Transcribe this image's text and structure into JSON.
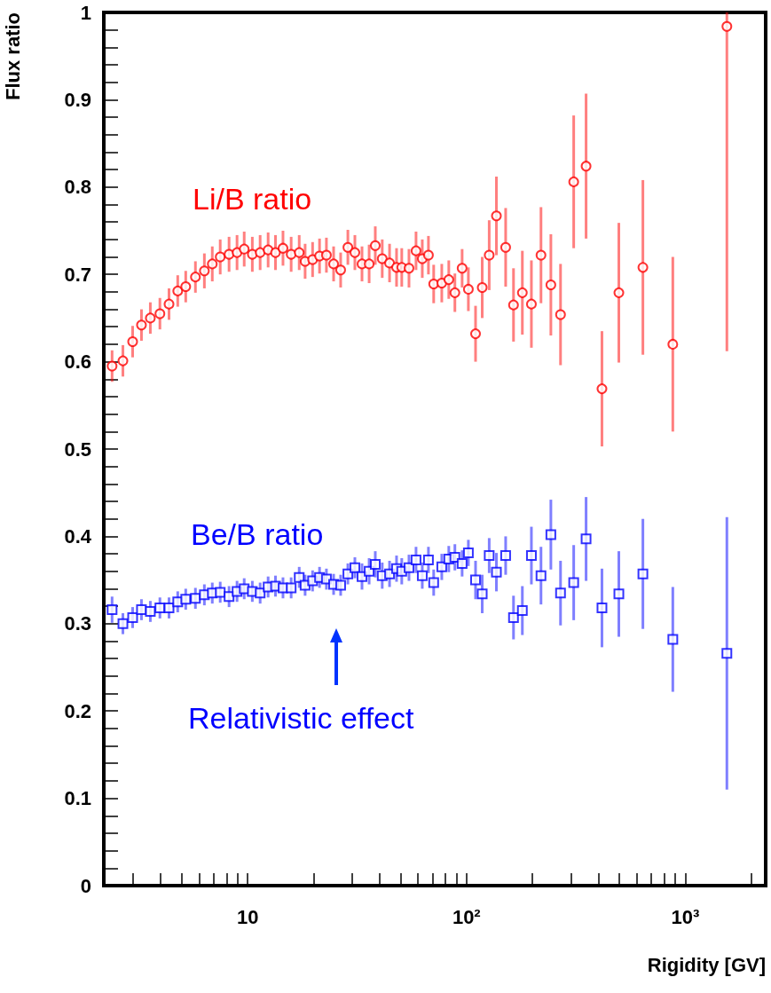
{
  "chart_data": {
    "type": "scatter",
    "xlabel": "Rigidity [GV]",
    "ylabel": "Flux ratio",
    "log": "x",
    "grid": false,
    "xlim": [
      2.2,
      2330
    ],
    "ylim": [
      0,
      1
    ],
    "xticks": [
      {
        "value": 3,
        "label": null
      },
      {
        "value": 4,
        "label": null
      },
      {
        "value": 5,
        "label": null
      },
      {
        "value": 6,
        "label": null
      },
      {
        "value": 7,
        "label": null
      },
      {
        "value": 8,
        "label": null
      },
      {
        "value": 9,
        "label": null
      },
      {
        "value": 10,
        "label": "10"
      },
      {
        "value": 20,
        "label": null
      },
      {
        "value": 30,
        "label": null
      },
      {
        "value": 40,
        "label": null
      },
      {
        "value": 50,
        "label": null
      },
      {
        "value": 60,
        "label": null
      },
      {
        "value": 70,
        "label": null
      },
      {
        "value": 80,
        "label": null
      },
      {
        "value": 90,
        "label": null
      },
      {
        "value": 100,
        "label": "10²"
      },
      {
        "value": 200,
        "label": null
      },
      {
        "value": 300,
        "label": null
      },
      {
        "value": 400,
        "label": null
      },
      {
        "value": 500,
        "label": null
      },
      {
        "value": 600,
        "label": null
      },
      {
        "value": 700,
        "label": null
      },
      {
        "value": 800,
        "label": null
      },
      {
        "value": 900,
        "label": null
      },
      {
        "value": 1000,
        "label": "10³"
      },
      {
        "value": 2000,
        "label": null
      }
    ],
    "yticks": [
      0,
      {
        "value": 0.02,
        "label": null
      },
      {
        "value": 0.04,
        "label": null
      },
      {
        "value": 0.06,
        "label": null
      },
      {
        "value": 0.08,
        "label": null
      },
      0.1,
      {
        "value": 0.12,
        "label": null
      },
      {
        "value": 0.14,
        "label": null
      },
      {
        "value": 0.16,
        "label": null
      },
      {
        "value": 0.18,
        "label": null
      },
      0.2,
      {
        "value": 0.22,
        "label": null
      },
      {
        "value": 0.24,
        "label": null
      },
      {
        "value": 0.26,
        "label": null
      },
      {
        "value": 0.28,
        "label": null
      },
      0.3,
      {
        "value": 0.32,
        "label": null
      },
      {
        "value": 0.34,
        "label": null
      },
      {
        "value": 0.36,
        "label": null
      },
      {
        "value": 0.38,
        "label": null
      },
      0.4,
      {
        "value": 0.42,
        "label": null
      },
      {
        "value": 0.44,
        "label": null
      },
      {
        "value": 0.46,
        "label": null
      },
      {
        "value": 0.48,
        "label": null
      },
      0.5,
      {
        "value": 0.52,
        "label": null
      },
      {
        "value": 0.54,
        "label": null
      },
      {
        "value": 0.56,
        "label": null
      },
      {
        "value": 0.58,
        "label": null
      },
      0.6,
      {
        "value": 0.62,
        "label": null
      },
      {
        "value": 0.64,
        "label": null
      },
      {
        "value": 0.66,
        "label": null
      },
      {
        "value": 0.68,
        "label": null
      },
      0.7,
      {
        "value": 0.72,
        "label": null
      },
      {
        "value": 0.74,
        "label": null
      },
      {
        "value": 0.76,
        "label": null
      },
      {
        "value": 0.78,
        "label": null
      },
      0.8,
      {
        "value": 0.82,
        "label": null
      },
      {
        "value": 0.84,
        "label": null
      },
      {
        "value": 0.86,
        "label": null
      },
      {
        "value": 0.88,
        "label": null
      },
      0.9,
      {
        "value": 0.92,
        "label": null
      },
      {
        "value": 0.94,
        "label": null
      },
      {
        "value": 0.96,
        "label": null
      },
      {
        "value": 0.98,
        "label": null
      },
      1
    ],
    "x": [
      2.4,
      2.69,
      2.98,
      3.27,
      3.59,
      3.97,
      4.37,
      4.79,
      5.21,
      5.77,
      6.34,
      6.89,
      7.49,
      8.22,
      8.94,
      9.64,
      10.5,
      11.4,
      12.4,
      13.4,
      14.5,
      15.8,
      17.2,
      18.3,
      19.8,
      21.3,
      22.9,
      24.7,
      26.6,
      28.7,
      30.9,
      33.3,
      35.9,
      38.3,
      41.2,
      44.5,
      47.9,
      50.6,
      54.6,
      58.8,
      62.8,
      67.0,
      70.8,
      77.1,
      83.0,
      88.5,
      95.5,
      102,
      110,
      118,
      127,
      137,
      151,
      164,
      180,
      198,
      219,
      243,
      269,
      309,
      352,
      416,
      497,
      640,
      877,
      1549
    ],
    "annotations": [
      "Relativistic effect"
    ],
    "series": [
      {
        "name": "Li/B ratio",
        "color": "#ff0000",
        "marker": "circle",
        "values": [
          0.595,
          0.601,
          0.623,
          0.642,
          0.65,
          0.655,
          0.666,
          0.681,
          0.686,
          0.697,
          0.704,
          0.712,
          0.72,
          0.723,
          0.725,
          0.729,
          0.723,
          0.725,
          0.728,
          0.725,
          0.73,
          0.723,
          0.725,
          0.715,
          0.717,
          0.721,
          0.722,
          0.712,
          0.705,
          0.731,
          0.725,
          0.712,
          0.712,
          0.733,
          0.718,
          0.713,
          0.708,
          0.708,
          0.707,
          0.727,
          0.718,
          0.722,
          0.689,
          0.69,
          0.694,
          0.679,
          0.707,
          0.683,
          0.632,
          0.685,
          0.722,
          0.767,
          0.731,
          0.665,
          0.679,
          0.666,
          0.722,
          0.688,
          0.654,
          0.806,
          0.824,
          0.569,
          0.679,
          0.708,
          0.62,
          0.984
        ],
        "errors": [
          0.018,
          0.018,
          0.018,
          0.018,
          0.018,
          0.018,
          0.018,
          0.018,
          0.018,
          0.018,
          0.02,
          0.02,
          0.02,
          0.02,
          0.02,
          0.02,
          0.02,
          0.02,
          0.02,
          0.02,
          0.02,
          0.02,
          0.02,
          0.02,
          0.02,
          0.02,
          0.02,
          0.02,
          0.02,
          0.02,
          0.02,
          0.02,
          0.022,
          0.022,
          0.022,
          0.022,
          0.022,
          0.022,
          0.022,
          0.022,
          0.022,
          0.022,
          0.022,
          0.022,
          0.022,
          0.022,
          0.022,
          0.025,
          0.032,
          0.035,
          0.04,
          0.045,
          0.045,
          0.042,
          0.048,
          0.05,
          0.055,
          0.058,
          0.058,
          0.076,
          0.083,
          0.066,
          0.08,
          0.1,
          0.1,
          [
            0.612,
            1.0
          ]
        ]
      },
      {
        "name": "Be/B ratio",
        "color": "#0000ff",
        "marker": "square",
        "values": [
          0.316,
          0.3,
          0.307,
          0.316,
          0.314,
          0.318,
          0.318,
          0.325,
          0.328,
          0.329,
          0.333,
          0.335,
          0.336,
          0.331,
          0.337,
          0.34,
          0.337,
          0.335,
          0.342,
          0.343,
          0.341,
          0.341,
          0.353,
          0.344,
          0.349,
          0.353,
          0.351,
          0.345,
          0.344,
          0.357,
          0.364,
          0.354,
          0.36,
          0.368,
          0.355,
          0.357,
          0.363,
          0.36,
          0.364,
          0.373,
          0.355,
          0.373,
          0.347,
          0.365,
          0.374,
          0.376,
          0.369,
          0.381,
          0.35,
          0.334,
          0.378,
          0.359,
          0.378,
          0.307,
          0.315,
          0.378,
          0.355,
          0.402,
          0.335,
          0.347,
          0.397,
          0.318,
          0.334,
          0.357,
          0.282,
          0.266
        ],
        "errors": [
          0.015,
          0.012,
          0.012,
          0.012,
          0.012,
          0.012,
          0.012,
          0.012,
          0.012,
          0.012,
          0.012,
          0.012,
          0.012,
          0.012,
          0.012,
          0.012,
          0.012,
          0.012,
          0.012,
          0.012,
          0.012,
          0.012,
          0.012,
          0.012,
          0.012,
          0.012,
          0.012,
          0.012,
          0.012,
          0.012,
          0.012,
          0.015,
          0.015,
          0.015,
          0.015,
          0.015,
          0.015,
          0.015,
          0.015,
          0.015,
          0.015,
          0.015,
          0.015,
          0.015,
          0.015,
          0.015,
          0.015,
          0.015,
          0.022,
          0.022,
          0.02,
          0.022,
          0.022,
          0.025,
          0.028,
          0.033,
          0.033,
          0.04,
          0.037,
          0.043,
          0.048,
          0.045,
          0.049,
          0.063,
          0.06,
          0.156
        ]
      }
    ]
  }
}
